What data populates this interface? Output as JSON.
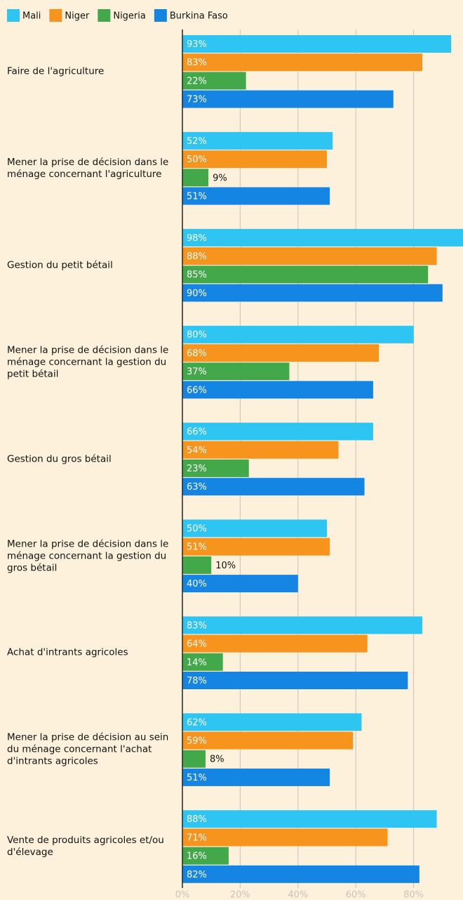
{
  "chart_data": {
    "type": "barh",
    "categories": [
      "Faire de l'agriculture",
      "Mener la prise de décision dans le ménage concernant l'agriculture",
      "Gestion du petit bétail",
      "Mener la prise de décision dans le ménage concernant la gestion du petit bétail",
      "Gestion du gros bétail",
      "Mener la prise de décision dans le ménage concernant la gestion du gros bétail",
      "Achat d'intrants agricoles",
      "Mener la prise de décision au sein du ménage concernant l'achat d'intrants agricoles",
      "Vente de produits agricoles et/ou d'élevage"
    ],
    "series": [
      {
        "name": "Mali",
        "color": "#2ec5f2",
        "values": [
          93,
          52,
          98,
          80,
          66,
          50,
          83,
          62,
          88
        ],
        "value_labels": [
          "93%",
          "52%",
          "98%",
          "80%",
          "66%",
          "50%",
          "83%",
          "62%",
          "88%"
        ]
      },
      {
        "name": "Niger",
        "color": "#f7941d",
        "values": [
          83,
          50,
          88,
          68,
          54,
          51,
          64,
          59,
          71
        ],
        "value_labels": [
          "83%",
          "50%",
          "88%",
          "68%",
          "54%",
          "51%",
          "64%",
          "59%",
          "71%"
        ]
      },
      {
        "name": "Nigeria",
        "color": "#43a84a",
        "values": [
          22,
          9,
          85,
          37,
          23,
          10,
          14,
          8,
          16
        ],
        "value_labels": [
          "22%",
          "9%",
          "85%",
          "37%",
          "23%",
          "10%",
          "14%",
          "8%",
          "16%"
        ]
      },
      {
        "name": "Burkina Faso",
        "color": "#1585e3",
        "values": [
          73,
          51,
          90,
          66,
          63,
          40,
          78,
          51,
          82
        ],
        "value_labels": [
          "73%",
          "51%",
          "90%",
          "66%",
          "63%",
          "40%",
          "78%",
          "51%",
          "82%"
        ]
      }
    ],
    "xlim": [
      0,
      100
    ],
    "xticks": [
      {
        "value": 0,
        "label": "0%"
      },
      {
        "value": 20,
        "label": "20%"
      },
      {
        "value": 40,
        "label": "40%"
      },
      {
        "value": 60,
        "label": "60%"
      },
      {
        "value": 80,
        "label": "80%"
      }
    ],
    "grid": true,
    "legend": "top"
  }
}
